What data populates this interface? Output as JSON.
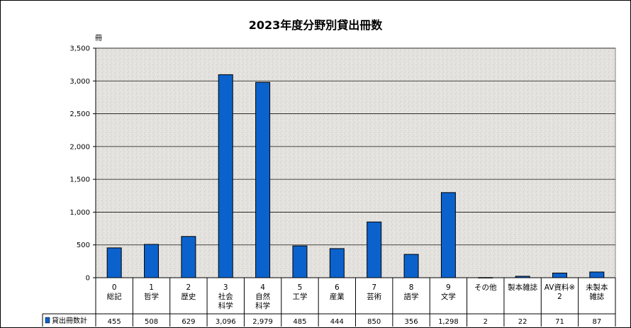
{
  "chart_data": {
    "type": "bar",
    "title": "2023年度分野別貸出冊数",
    "ylabel": "冊",
    "ylim": [
      0,
      3500
    ],
    "yticks": [
      "0",
      "500",
      "1,000",
      "1,500",
      "2,000",
      "2,500",
      "3,000",
      "3,500"
    ],
    "ytick_values": [
      0,
      500,
      1000,
      1500,
      2000,
      2500,
      3000,
      3500
    ],
    "categories": [
      [
        "0",
        "総記"
      ],
      [
        "1",
        "哲学"
      ],
      [
        "2",
        "歴史"
      ],
      [
        "3",
        "社会",
        "科学"
      ],
      [
        "4",
        "自然",
        "科学"
      ],
      [
        "5",
        "工学"
      ],
      [
        "6",
        "産業"
      ],
      [
        "7",
        "芸術"
      ],
      [
        "8",
        "語学"
      ],
      [
        "9",
        "文学"
      ],
      [
        "その他"
      ],
      [
        "製本雑誌"
      ],
      [
        "AV資料※",
        "2"
      ],
      [
        "未製本",
        "雑誌"
      ]
    ],
    "series": [
      {
        "name": "貸出冊数計",
        "values": [
          455,
          508,
          629,
          3096,
          2979,
          485,
          444,
          850,
          356,
          1298,
          2,
          22,
          71,
          87
        ],
        "labels": [
          "455",
          "508",
          "629",
          "3,096",
          "2,979",
          "485",
          "444",
          "850",
          "356",
          "1,298",
          "2",
          "22",
          "71",
          "87"
        ]
      }
    ],
    "bar_color": "#0b62cc",
    "grid": true,
    "legend": "data-table-left"
  }
}
